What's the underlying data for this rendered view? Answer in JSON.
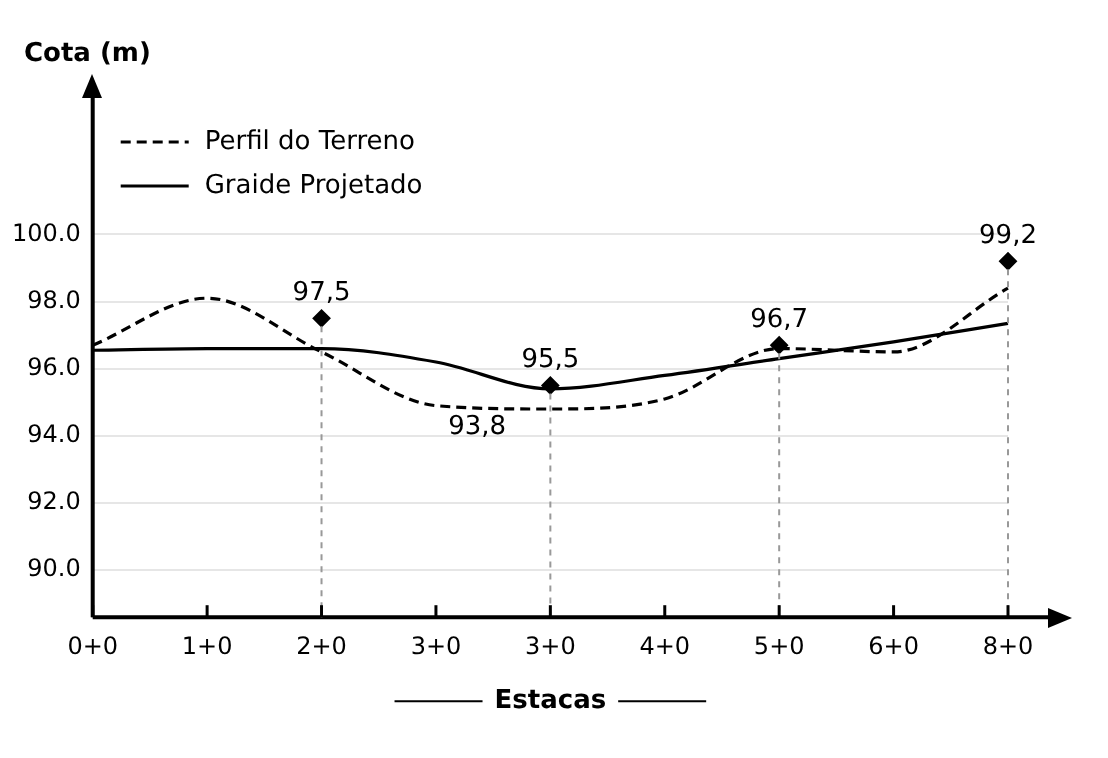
{
  "chart_data": {
    "type": "line",
    "xlabel": "Estacas",
    "ylabel": "Cota (m)",
    "categories": [
      "0+0",
      "1+0",
      "2+0",
      "3+0",
      "3+0",
      "4+0",
      "5+0",
      "6+0",
      "8+0"
    ],
    "series": [
      {
        "name": "Perfil do Terreno",
        "color": "#000000",
        "line_style": "dashed",
        "marker": "none",
        "values": [
          96.7,
          98.1,
          96.5,
          94.9,
          94.8,
          95.1,
          96.6,
          96.5,
          98.4
        ]
      },
      {
        "name": "Graide Projetado",
        "color": "#000000",
        "line_style": "solid",
        "marker": "none",
        "values": [
          96.55,
          96.6,
          96.6,
          96.2,
          95.4,
          95.8,
          96.3,
          96.8,
          97.35
        ]
      },
      {
        "type": "scatter",
        "color": "#000000",
        "marker": "diamond",
        "values": [
          null,
          null,
          97.5,
          null,
          95.5,
          null,
          96.7,
          null,
          99.2
        ],
        "value_labels": [
          null,
          null,
          "97,5",
          null,
          "95,5",
          null,
          "96,7",
          null,
          "99,2"
        ]
      }
    ],
    "annotations": [
      "93,8"
    ],
    "ylim": [
      88.6,
      104.3
    ],
    "yticks": [
      {
        "value": 90,
        "label": "90.0"
      },
      {
        "value": 92,
        "label": "92.0"
      },
      {
        "value": 94,
        "label": "94.0"
      },
      {
        "value": 96,
        "label": "96.0"
      },
      {
        "value": 98,
        "label": "98.0"
      },
      {
        "value": 100,
        "label": "100.0"
      }
    ],
    "grid": "y",
    "legend": "top left"
  }
}
